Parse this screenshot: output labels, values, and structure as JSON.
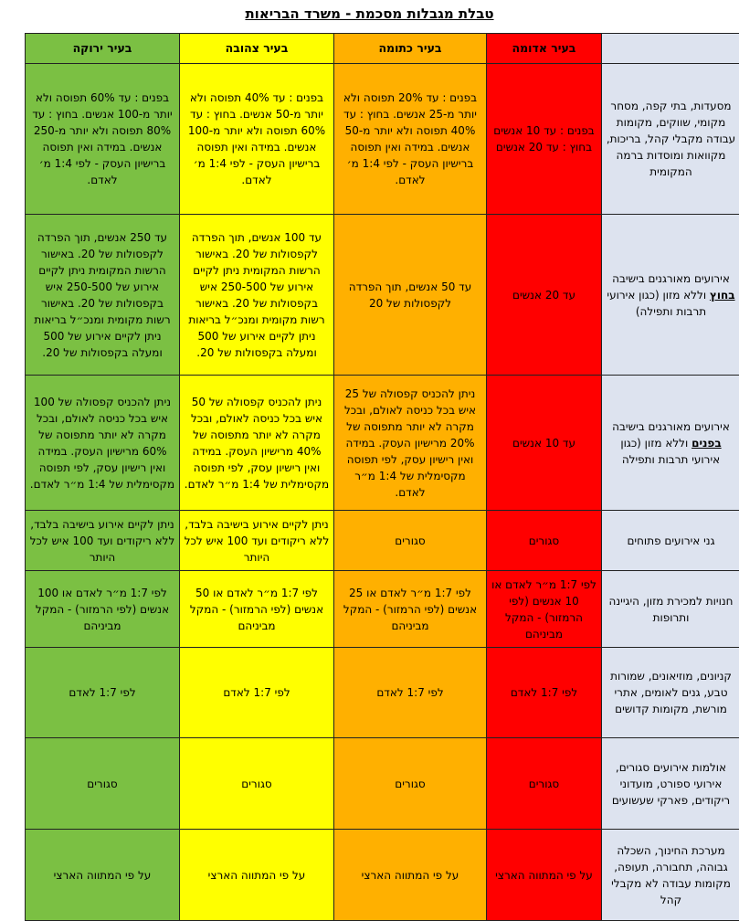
{
  "title": "טבלת מגבלות מסכמת - משרד הבריאות",
  "columns": [
    "בעיר ירוקה",
    "בעיר צהובה",
    "בעיר כתומה",
    "בעיר אדומה"
  ],
  "colors": {
    "green": "#7bc043",
    "yellow": "#ffff00",
    "orange": "#ffb000",
    "red": "#ff0000",
    "label": "#dde3ef"
  },
  "rows": [
    {
      "label": "מסעדות, בתי קפה, מסחר מקומי, שווקים, מקומות עבודה מקבלי קהל, בריכות, מקוואות ומוסדות ברמה המקומית",
      "green": "בפנים : עד 60% תפוסה ולא יותר מ-100 אנשים. בחוץ : עד 80% תפוסה ולא יותר מ-250 אנשים. במידה ואין תפוסה ברישיון העסק - לפי 1:4 מ׳ לאדם.",
      "yellow": "בפנים : עד 40% תפוסה ולא יותר מ-50 אנשים. בחוץ : עד 60% תפוסה ולא יותר מ-100 אנשים. במידה ואין תפוסה ברישיון העסק - לפי 1:4 מ׳ לאדם.",
      "orange": "בפנים : עד 20% תפוסה ולא יותר מ-25 אנשים. בחוץ : עד 40% תפוסה ולא יותר מ-50 אנשים. במידה ואין תפוסה ברישיון העסק - לפי 1:4 מ׳ לאדם.",
      "red": "בפנים : עד 10 אנשים בחוץ : עד 20 אנשים"
    },
    {
      "label_pre": "אירועים מאורגנים בישיבה",
      "label_em": "בחוץ",
      "label_post": "וללא מזון (כגון אירועי תרבות ותפילה)",
      "green": "עד 250 אנשים, תוך הפרדה לקפסולות של 20. באישור הרשות המקומית ניתן לקיים אירוע של 250-500 איש בקפסולות של 20. באישור רשות מקומית ומנכ״ל בריאות ניתן לקיים אירוע של 500 ומעלה בקפסולות של 20.",
      "yellow": "עד 100 אנשים, תוך הפרדה לקפסולות של 20. באישור הרשות המקומית ניתן לקיים אירוע של 250-500 איש בקפסולות של 20. באישור רשות מקומית ומנכ״ל בריאות ניתן לקיים אירוע של 500 ומעלה בקפסולות של 20.",
      "orange": "עד 50 אנשים, תוך הפרדה לקפסולות של 20",
      "red": "עד 20 אנשים"
    },
    {
      "label_pre": "אירועים מאורגנים בישיבה",
      "label_em": "בפנים",
      "label_post": "וללא מזון (כגון אירועי תרבות ותפילה",
      "green": "ניתן להכניס קפסולה של 100 איש בכל כניסה לאולם, ובכל מקרה לא יותר מתפוסה של 60% מרישיון העסק. במידה ואין רישיון עסק, לפי תפוסה מקסימלית של 1:4 מ״ר לאדם.",
      "yellow": "ניתן להכניס קפסולה של 50 איש בכל כניסה לאולם, ובכל מקרה לא יותר מתפוסה של 40% מרישיון העסק. במידה ואין רישיון עסק, לפי תפוסה מקסימלית של 1:4 מ״ר לאדם.",
      "orange": "ניתן להכניס קפסולה של 25 איש בכל כניסה לאולם, ובכל מקרה לא יותר מתפוסה של 20% מרישיון העסק. במידה ואין רישיון עסק, לפי תפוסה מקסימלית של 1:4 מ״ר לאדם.",
      "red": "עד 10 אנשים"
    },
    {
      "label": "גני אירועים פתוחים",
      "green": "ניתן לקיים אירוע בישיבה בלבד, ללא ריקודים ועד 100 איש לכל היותר",
      "yellow": "ניתן לקיים אירוע בישיבה בלבד, ללא ריקודים ועד 100 איש לכל היותר",
      "orange": "סגורים",
      "red": "סגורים"
    },
    {
      "label": "חנויות למכירת מזון, היגיינה ותרופות",
      "green": "לפי 1:7 מ״ר לאדם או 100 אנשים (לפי הרמזור) - המקל מביניהם",
      "yellow": "לפי 1:7 מ״ר לאדם או 50 אנשים (לפי הרמזור) - המקל מביניהם",
      "orange": "לפי 1:7 מ״ר לאדם או 25 אנשים (לפי הרמזור) - המקל מביניהם",
      "red": "לפי 1:7 מ״ר לאדם או 10 אנשים (לפי הרמזור) - המקל מביניהם"
    },
    {
      "label": "קניונים, מוזיאונים, שמורות טבע, גנים לאומים, אתרי מורשת, מקומות קדושים",
      "green": "לפי 1:7 לאדם",
      "yellow": "לפי 1:7 לאדם",
      "orange": "לפי 1:7 לאדם",
      "red": "לפי 1:7 לאדם"
    },
    {
      "label": "אולמות אירועים סגורים, אירועי ספורט, מועדוני ריקודים, פארקי שעשועים",
      "green": "סגורים",
      "yellow": "סגורים",
      "orange": "סגורים",
      "red": "סגורים"
    },
    {
      "label": "מערכת החינוך, השכלה גבוהה, תחבורה, תעופה, מקומות עבודה לא מקבלי קהל",
      "green": "על פי המתווה הארצי",
      "yellow": "על פי המתווה הארצי",
      "orange": "על פי המתווה הארצי",
      "red": "על פי המתווה הארצי"
    }
  ]
}
